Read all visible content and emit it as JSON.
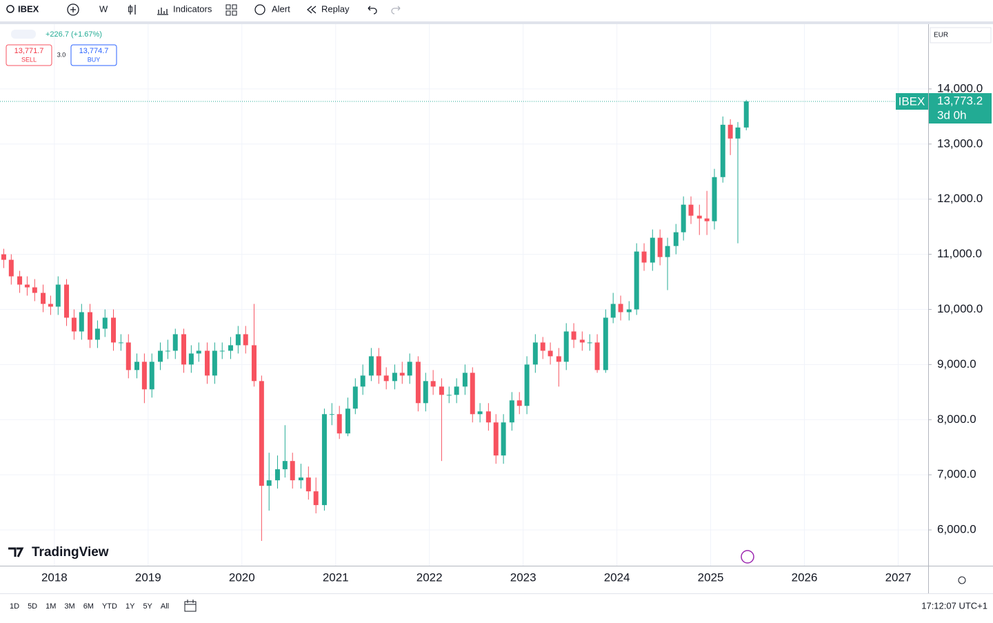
{
  "toolbar": {
    "symbol": "IBEX",
    "interval": "W",
    "indicators": "Indicators",
    "alert": "Alert",
    "replay": "Replay"
  },
  "quote": {
    "change": "+226.7 (+1.67%)",
    "sell_price": "13,771.7",
    "sell": "SELL",
    "spread": "3.0",
    "buy_price": "13,774.7",
    "buy": "BUY"
  },
  "ranges": [
    "1D",
    "5D",
    "1M",
    "3M",
    "6M",
    "YTD",
    "1Y",
    "5Y",
    "All"
  ],
  "clock": "17:12:07 UTC+1",
  "chart_data": {
    "type": "candlestick",
    "symbol_label": "IBEX",
    "last_label": "13,773.2",
    "countdown": "3d 0h",
    "currency": "EUR",
    "watermark": "TradingView",
    "up_color": "#22ab94",
    "down_color": "#f7525f",
    "grid": true,
    "xlim": [
      2017.42,
      2027.32
    ],
    "xticks": [
      2018,
      2019,
      2020,
      2021,
      2022,
      2023,
      2024,
      2025,
      2026,
      2027
    ],
    "ylim": [
      5350,
      15175
    ],
    "yticks": [
      {
        "value": 6000,
        "label": "6,000.0"
      },
      {
        "value": 7000,
        "label": "7,000.0"
      },
      {
        "value": 8000,
        "label": "8,000.0"
      },
      {
        "value": 9000,
        "label": "9,000.0"
      },
      {
        "value": 10000,
        "label": "10,000.0"
      },
      {
        "value": 11000,
        "label": "11,000.0"
      },
      {
        "value": 12000,
        "label": "12,000.0"
      },
      {
        "value": 13000,
        "label": "13,000.0"
      },
      {
        "value": 14000,
        "label": "14,000.0"
      }
    ],
    "x": [
      2017.46,
      2017.54,
      2017.63,
      2017.71,
      2017.79,
      2017.88,
      2017.96,
      2018.04,
      2018.13,
      2018.21,
      2018.29,
      2018.38,
      2018.46,
      2018.54,
      2018.63,
      2018.71,
      2018.79,
      2018.88,
      2018.96,
      2019.04,
      2019.13,
      2019.21,
      2019.29,
      2019.38,
      2019.46,
      2019.54,
      2019.63,
      2019.71,
      2019.79,
      2019.88,
      2019.96,
      2020.04,
      2020.13,
      2020.21,
      2020.29,
      2020.38,
      2020.46,
      2020.54,
      2020.63,
      2020.71,
      2020.79,
      2020.88,
      2020.96,
      2021.04,
      2021.13,
      2021.21,
      2021.29,
      2021.38,
      2021.46,
      2021.54,
      2021.63,
      2021.71,
      2021.79,
      2021.88,
      2021.96,
      2022.04,
      2022.13,
      2022.21,
      2022.29,
      2022.38,
      2022.46,
      2022.54,
      2022.63,
      2022.71,
      2022.79,
      2022.88,
      2022.96,
      2023.04,
      2023.13,
      2023.21,
      2023.29,
      2023.38,
      2023.46,
      2023.54,
      2023.63,
      2023.71,
      2023.79,
      2023.88,
      2023.96,
      2024.04,
      2024.13,
      2024.21,
      2024.29,
      2024.38,
      2024.46,
      2024.54,
      2024.63,
      2024.71,
      2024.79,
      2024.88,
      2024.96,
      2025.04,
      2025.13,
      2025.21,
      2025.29,
      2025.38
    ],
    "open": [
      11000,
      10900,
      10600,
      10450,
      10400,
      10300,
      10100,
      10050,
      10450,
      9850,
      9600,
      9950,
      9450,
      9650,
      9850,
      9400,
      9400,
      8900,
      9050,
      8550,
      9050,
      9250,
      9250,
      9550,
      9000,
      9200,
      9250,
      8800,
      9250,
      9250,
      9350,
      9550,
      9350,
      8700,
      6800,
      6900,
      7100,
      7250,
      6900,
      6950,
      6700,
      6450,
      8100,
      8100,
      7750,
      8200,
      8600,
      8800,
      9150,
      8800,
      8700,
      8850,
      8800,
      9050,
      8300,
      8700,
      8600,
      8450,
      8450,
      8600,
      8850,
      8100,
      8150,
      7950,
      7350,
      7950,
      8350,
      8250,
      9000,
      9400,
      9250,
      9150,
      9050,
      9600,
      9450,
      9400,
      9400,
      8900,
      9850,
      10100,
      9950,
      10000,
      11050,
      10850,
      11300,
      10950,
      11150,
      11400,
      11900,
      11700,
      11650,
      11600,
      12400,
      13350,
      13100,
      13300
    ],
    "high": [
      11100,
      11000,
      10700,
      10600,
      10550,
      10450,
      10250,
      10600,
      10550,
      10000,
      10100,
      10100,
      9800,
      10000,
      10000,
      9550,
      9550,
      9200,
      9200,
      9200,
      9400,
      9450,
      9650,
      9650,
      9350,
      9400,
      9400,
      9400,
      9400,
      9500,
      9700,
      9700,
      10100,
      8800,
      7400,
      7350,
      7900,
      7400,
      7200,
      7150,
      6950,
      8200,
      8300,
      8250,
      8400,
      8750,
      9000,
      9300,
      9300,
      8950,
      9000,
      9050,
      9200,
      9150,
      8850,
      8900,
      8750,
      8600,
      8750,
      9000,
      8950,
      8300,
      8300,
      8100,
      8100,
      8500,
      8500,
      9150,
      9550,
      9500,
      9400,
      9300,
      9750,
      9750,
      9600,
      9550,
      9550,
      10000,
      10300,
      10250,
      10150,
      11200,
      11200,
      11450,
      11450,
      11300,
      11550,
      12050,
      12050,
      11900,
      12150,
      12550,
      13500,
      13450,
      13400,
      13800
    ],
    "low": [
      10750,
      10450,
      10300,
      10250,
      10150,
      9950,
      9900,
      9900,
      9700,
      9450,
      9450,
      9300,
      9300,
      9500,
      9250,
      9250,
      8750,
      8750,
      8300,
      8400,
      8900,
      9100,
      9100,
      8850,
      8850,
      9050,
      8650,
      8650,
      9100,
      9100,
      9200,
      9200,
      8600,
      5800,
      6350,
      6750,
      6950,
      6750,
      6750,
      6550,
      6300,
      6350,
      7900,
      7650,
      7700,
      8100,
      8450,
      8700,
      8650,
      8550,
      8550,
      8650,
      8650,
      8150,
      8150,
      8450,
      7250,
      8300,
      8300,
      8450,
      7950,
      7950,
      7800,
      7200,
      7200,
      7800,
      8100,
      8100,
      8850,
      9100,
      9000,
      8600,
      8900,
      9300,
      9250,
      9250,
      8850,
      8850,
      9750,
      9800,
      9800,
      9900,
      10700,
      10700,
      10800,
      10350,
      11000,
      11250,
      11550,
      11350,
      11350,
      11450,
      12300,
      12800,
      11200,
      13250
    ],
    "close": [
      10900,
      10600,
      10450,
      10400,
      10300,
      10100,
      10050,
      10450,
      9850,
      9600,
      9950,
      9450,
      9650,
      9850,
      9400,
      9400,
      8900,
      9050,
      8550,
      9050,
      9250,
      9250,
      9550,
      9000,
      9200,
      9250,
      8800,
      9250,
      9250,
      9350,
      9550,
      9350,
      8700,
      6800,
      6900,
      7100,
      7250,
      6900,
      6950,
      6700,
      6450,
      8100,
      8100,
      7750,
      8200,
      8600,
      8800,
      9150,
      8800,
      8700,
      8850,
      8800,
      9050,
      8300,
      8700,
      8600,
      8450,
      8450,
      8600,
      8850,
      8100,
      8150,
      7950,
      7350,
      7950,
      8350,
      8250,
      9000,
      9400,
      9250,
      9150,
      9050,
      9600,
      9450,
      9400,
      9400,
      8900,
      9850,
      10100,
      9950,
      10000,
      11050,
      10850,
      11300,
      10950,
      11150,
      11400,
      11900,
      11700,
      11650,
      11600,
      12400,
      13350,
      13100,
      13300,
      13773.2
    ]
  }
}
